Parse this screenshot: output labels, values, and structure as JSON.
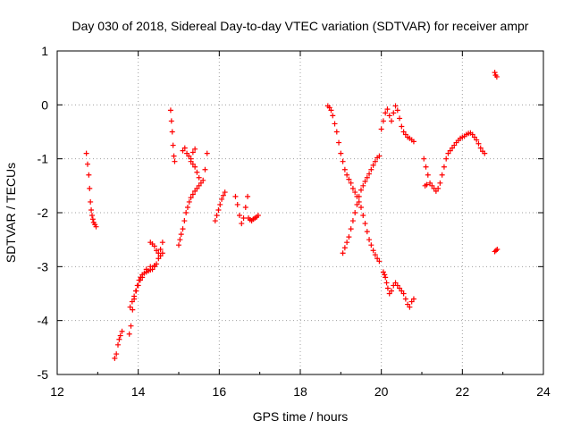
{
  "chart_data": {
    "type": "scatter",
    "title": "Day 030 of 2018, Sidereal Day-to-day VTEC variation (SDTVAR) for receiver ampr",
    "xlabel": "GPS time / hours",
    "ylabel": "SDTVAR / TECUs",
    "xlim": [
      12,
      24
    ],
    "ylim": [
      -5,
      1
    ],
    "xticks": [
      12,
      14,
      16,
      18,
      20,
      22,
      24
    ],
    "yticks": [
      1,
      0,
      -1,
      -2,
      -3,
      -4,
      -5
    ],
    "grid": true,
    "marker": "+",
    "color": "#ff0000",
    "series": [
      {
        "name": "seg-12.7",
        "x": [
          12.72,
          12.75,
          12.78,
          12.8,
          12.82,
          12.84,
          12.86,
          12.88,
          12.9,
          12.93,
          12.96
        ],
        "y": [
          -0.9,
          -1.1,
          -1.3,
          -1.55,
          -1.8,
          -1.95,
          -2.05,
          -2.12,
          -2.18,
          -2.22,
          -2.26
        ]
      },
      {
        "name": "seg-13.4",
        "x": [
          13.42,
          13.46,
          13.5,
          13.53,
          13.56,
          13.6
        ],
        "y": [
          -4.7,
          -4.62,
          -4.45,
          -4.35,
          -4.28,
          -4.2
        ]
      },
      {
        "name": "seg-13.8",
        "x": [
          13.78,
          13.82,
          13.86,
          13.9,
          13.94,
          13.98,
          14.02,
          14.06,
          14.1,
          14.15,
          14.2,
          14.25,
          14.3,
          14.35
        ],
        "y": [
          -4.25,
          -4.1,
          -3.8,
          -3.6,
          -3.45,
          -3.35,
          -3.25,
          -3.2,
          -3.15,
          -3.12,
          -3.1,
          -3.08,
          -3.06,
          -3.05
        ]
      },
      {
        "name": "seg-13.8b",
        "x": [
          13.8,
          13.85,
          13.9,
          13.95,
          14.0,
          14.05,
          14.1,
          14.2,
          14.3,
          14.4
        ],
        "y": [
          -3.75,
          -3.65,
          -3.55,
          -3.45,
          -3.35,
          -3.25,
          -3.2,
          -3.05,
          -3.0,
          -2.98
        ]
      },
      {
        "name": "seg-14.3",
        "x": [
          14.3,
          14.35,
          14.4,
          14.45,
          14.5,
          14.55,
          14.6
        ],
        "y": [
          -2.55,
          -2.58,
          -2.62,
          -2.7,
          -2.75,
          -2.68,
          -2.55
        ]
      },
      {
        "name": "seg-14.4",
        "x": [
          14.4,
          14.45,
          14.5,
          14.55,
          14.6
        ],
        "y": [
          -3.0,
          -2.95,
          -2.85,
          -2.8,
          -2.75
        ]
      },
      {
        "name": "seg-14.8",
        "x": [
          14.8,
          14.82,
          14.84,
          14.86,
          14.88,
          14.9
        ],
        "y": [
          -0.1,
          -0.3,
          -0.5,
          -0.75,
          -0.95,
          -1.05
        ]
      },
      {
        "name": "seg-15.1",
        "x": [
          15.1,
          15.15,
          15.2,
          15.25,
          15.3,
          15.35,
          15.4
        ],
        "y": [
          -0.85,
          -0.8,
          -0.9,
          -0.95,
          -1.0,
          -0.88,
          -0.82
        ]
      },
      {
        "name": "seg-15.0",
        "x": [
          15.0,
          15.03,
          15.06,
          15.1,
          15.14,
          15.18,
          15.22,
          15.26,
          15.3,
          15.35,
          15.4,
          15.45,
          15.5
        ],
        "y": [
          -2.6,
          -2.5,
          -2.4,
          -2.3,
          -2.15,
          -2.0,
          -1.9,
          -1.8,
          -1.72,
          -1.66,
          -1.6,
          -1.55,
          -1.5
        ]
      },
      {
        "name": "seg-15.3",
        "x": [
          15.3,
          15.35,
          15.4,
          15.45,
          15.5,
          15.55,
          15.6,
          15.65,
          15.7
        ],
        "y": [
          -1.05,
          -1.1,
          -1.15,
          -1.25,
          -1.35,
          -1.45,
          -1.4,
          -1.2,
          -0.9
        ]
      },
      {
        "name": "seg-15.9",
        "x": [
          15.9,
          15.94,
          15.98,
          16.02,
          16.06,
          16.1,
          16.14
        ],
        "y": [
          -2.15,
          -2.05,
          -1.95,
          -1.85,
          -1.75,
          -1.68,
          -1.62
        ]
      },
      {
        "name": "seg-16.4",
        "x": [
          16.4,
          16.45,
          16.5,
          16.55,
          16.6,
          16.65,
          16.7
        ],
        "y": [
          -1.7,
          -1.85,
          -2.05,
          -2.2,
          -2.1,
          -1.9,
          -1.7
        ]
      },
      {
        "name": "seg-16.8",
        "x": [
          16.72,
          16.76,
          16.8,
          16.84,
          16.88,
          16.92,
          16.96
        ],
        "y": [
          -2.1,
          -2.13,
          -2.15,
          -2.12,
          -2.1,
          -2.08,
          -2.05
        ]
      },
      {
        "name": "seg-18.7a",
        "x": [
          18.68,
          18.72,
          18.76,
          18.8,
          18.85,
          18.9,
          18.95,
          19.0,
          19.05,
          19.1,
          19.15,
          19.2,
          19.25,
          19.3,
          19.35,
          19.4,
          19.45,
          19.5,
          19.55,
          19.6,
          19.65,
          19.7,
          19.75,
          19.8,
          19.85,
          19.9,
          19.95
        ],
        "y": [
          -0.02,
          -0.05,
          -0.1,
          -0.2,
          -0.35,
          -0.5,
          -0.7,
          -0.9,
          -1.05,
          -1.2,
          -1.3,
          -1.38,
          -1.45,
          -1.55,
          -1.62,
          -1.7,
          -1.8,
          -1.9,
          -2.05,
          -2.2,
          -2.35,
          -2.5,
          -2.6,
          -2.7,
          -2.78,
          -2.85,
          -2.9
        ]
      },
      {
        "name": "seg-19.1b",
        "x": [
          19.05,
          19.1,
          19.15,
          19.2,
          19.25,
          19.3,
          19.35,
          19.4,
          19.45,
          19.5,
          19.55,
          19.6,
          19.65,
          19.7,
          19.75,
          19.8,
          19.85,
          19.9,
          19.95
        ],
        "y": [
          -2.75,
          -2.65,
          -2.55,
          -2.45,
          -2.3,
          -2.15,
          -2.0,
          -1.85,
          -1.7,
          -1.58,
          -1.5,
          -1.42,
          -1.35,
          -1.28,
          -1.2,
          -1.12,
          -1.05,
          -0.98,
          -0.95
        ]
      },
      {
        "name": "seg-20.1",
        "x": [
          20.05,
          20.08,
          20.1,
          20.13,
          20.16,
          20.2,
          20.25,
          20.3,
          20.35,
          20.4,
          20.45,
          20.5,
          20.55,
          20.6,
          20.65,
          20.7,
          20.75,
          20.8
        ],
        "y": [
          -3.1,
          -3.15,
          -3.2,
          -3.3,
          -3.4,
          -3.5,
          -3.45,
          -3.35,
          -3.3,
          -3.35,
          -3.4,
          -3.45,
          -3.5,
          -3.6,
          -3.7,
          -3.75,
          -3.65,
          -3.6
        ]
      },
      {
        "name": "seg-20.0",
        "x": [
          20.0,
          20.05,
          20.1,
          20.15,
          20.2,
          20.25,
          20.3,
          20.35,
          20.4,
          20.45,
          20.5,
          20.55,
          20.6,
          20.65,
          20.7,
          20.75,
          20.8
        ],
        "y": [
          -0.45,
          -0.3,
          -0.15,
          -0.08,
          -0.2,
          -0.3,
          -0.15,
          -0.02,
          -0.1,
          -0.25,
          -0.4,
          -0.5,
          -0.55,
          -0.6,
          -0.62,
          -0.65,
          -0.68
        ]
      },
      {
        "name": "seg-21.1",
        "x": [
          21.05,
          21.1,
          21.15,
          21.2,
          21.25,
          21.3,
          21.35,
          21.4,
          21.45,
          21.5,
          21.55,
          21.6,
          21.65,
          21.7,
          21.75,
          21.8,
          21.85,
          21.9,
          21.95,
          22.0,
          22.05,
          22.1,
          22.15,
          22.2,
          22.25,
          22.3,
          22.35,
          22.4,
          22.45,
          22.5,
          22.55
        ],
        "y": [
          -1.0,
          -1.15,
          -1.3,
          -1.45,
          -1.5,
          -1.55,
          -1.6,
          -1.55,
          -1.45,
          -1.3,
          -1.15,
          -1.0,
          -0.9,
          -0.85,
          -0.8,
          -0.75,
          -0.7,
          -0.66,
          -0.62,
          -0.6,
          -0.58,
          -0.55,
          -0.53,
          -0.52,
          -0.55,
          -0.6,
          -0.65,
          -0.72,
          -0.8,
          -0.86,
          -0.9
        ]
      },
      {
        "name": "seg-21.1b",
        "x": [
          21.08,
          21.12
        ],
        "y": [
          -1.5,
          -1.48
        ]
      },
      {
        "name": "seg-22.8",
        "x": [
          22.8,
          22.82,
          22.85
        ],
        "y": [
          0.6,
          0.55,
          0.52
        ]
      },
      {
        "name": "seg-22.8b",
        "x": [
          22.8,
          22.83,
          22.86
        ],
        "y": [
          -2.72,
          -2.7,
          -2.68
        ]
      }
    ]
  }
}
